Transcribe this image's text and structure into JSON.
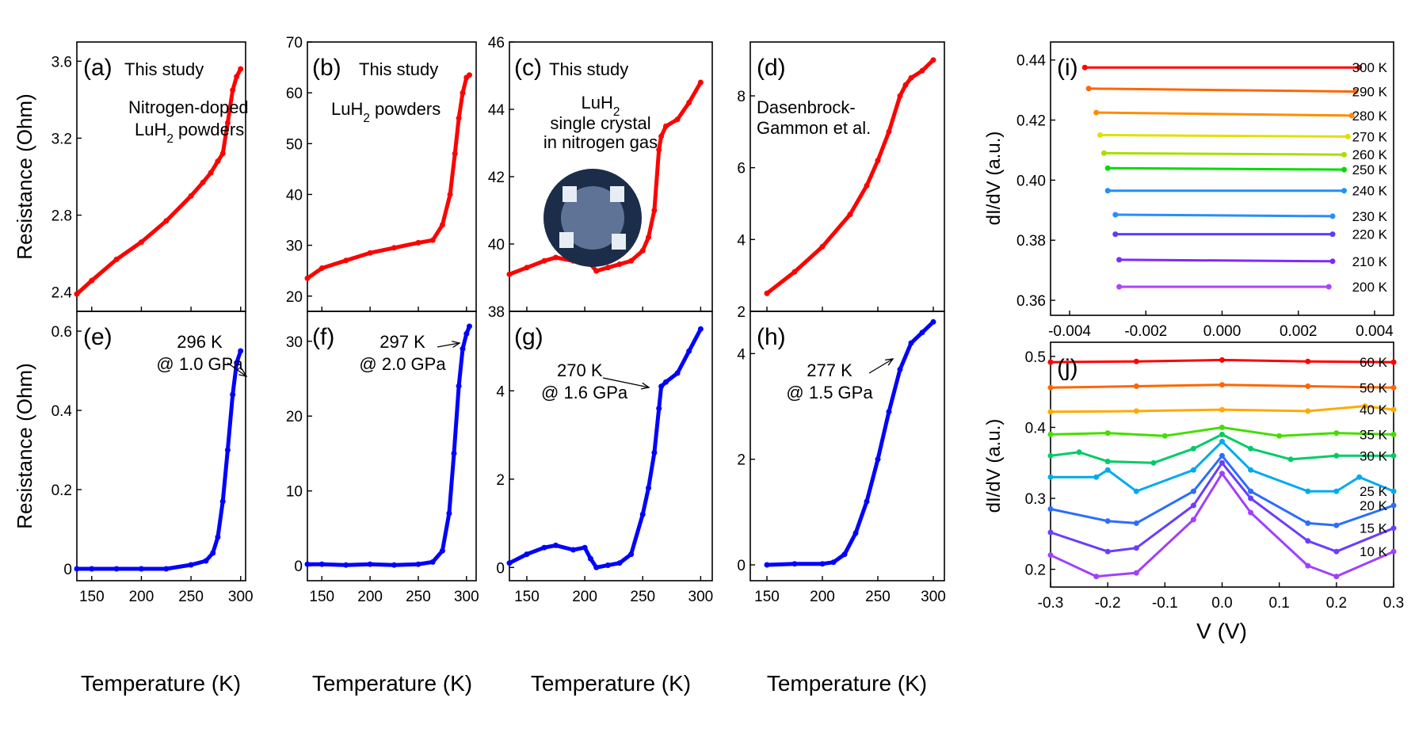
{
  "figure": {
    "ylabel_resistance": "Resistance (Ohm)",
    "xlabel_temperature": "Temperature (K)",
    "ylabel_didv": "dI/dV (a.u.)",
    "xlabel_voltage": "V (V)"
  },
  "chart_data": [
    {
      "id": "a",
      "type": "line",
      "panel_label": "(a)",
      "annotation_lines": [
        "This study",
        "Nitrogen-doped",
        "LuH2 powders"
      ],
      "xlim": [
        135,
        305
      ],
      "ylim": [
        2.3,
        3.7
      ],
      "xticks": [
        150,
        200,
        250,
        300
      ],
      "yticks": [
        2.4,
        2.8,
        3.2,
        3.6
      ],
      "series": [
        {
          "color": "#ff0000",
          "x": [
            135,
            150,
            175,
            200,
            225,
            250,
            262,
            270,
            277,
            282,
            287,
            292,
            296,
            300
          ],
          "y": [
            2.39,
            2.46,
            2.57,
            2.66,
            2.77,
            2.9,
            2.97,
            3.02,
            3.08,
            3.12,
            3.28,
            3.45,
            3.52,
            3.56
          ]
        }
      ]
    },
    {
      "id": "b",
      "type": "line",
      "panel_label": "(b)",
      "annotation_lines": [
        "This study",
        "LuH2 powders"
      ],
      "xlim": [
        135,
        310
      ],
      "ylim": [
        17,
        70
      ],
      "xticks": [
        150,
        200,
        250,
        300
      ],
      "yticks": [
        20,
        30,
        40,
        50,
        60,
        70
      ],
      "series": [
        {
          "color": "#ff0000",
          "x": [
            135,
            150,
            175,
            200,
            225,
            250,
            265,
            275,
            283,
            288,
            292,
            296,
            300,
            303
          ],
          "y": [
            23.5,
            25.5,
            27,
            28.5,
            29.5,
            30.5,
            31,
            34,
            40,
            48,
            55,
            60,
            63,
            63.5
          ]
        }
      ]
    },
    {
      "id": "c",
      "type": "line",
      "panel_label": "(c)",
      "annotation_lines": [
        "This study",
        "LuH2",
        "single crystal",
        "in nitrogen gas"
      ],
      "xlim": [
        135,
        310
      ],
      "ylim": [
        38,
        46
      ],
      "xticks": [
        150,
        200,
        250,
        300
      ],
      "yticks": [
        38,
        40,
        42,
        44,
        46
      ],
      "series": [
        {
          "color": "#ff0000",
          "x": [
            135,
            150,
            165,
            175,
            190,
            200,
            205,
            210,
            220,
            230,
            240,
            250,
            255,
            260,
            264,
            266,
            270,
            280,
            290,
            300
          ],
          "y": [
            39.1,
            39.3,
            39.5,
            39.6,
            39.5,
            39.6,
            39.4,
            39.2,
            39.3,
            39.4,
            39.5,
            39.8,
            40.2,
            41,
            42.8,
            43.2,
            43.5,
            43.7,
            44.2,
            44.8
          ]
        }
      ]
    },
    {
      "id": "d",
      "type": "line",
      "panel_label": "(d)",
      "annotation_lines": [
        "Dasenbrock-",
        "Gammon et al."
      ],
      "xlim": [
        135,
        310
      ],
      "ylim": [
        2,
        9.5
      ],
      "xticks": [
        150,
        200,
        250,
        300
      ],
      "yticks": [
        2,
        4,
        6,
        8
      ],
      "series": [
        {
          "color": "#ff0000",
          "x": [
            150,
            175,
            200,
            225,
            240,
            250,
            260,
            270,
            275,
            280,
            290,
            300
          ],
          "y": [
            2.5,
            3.1,
            3.8,
            4.7,
            5.5,
            6.2,
            7,
            8,
            8.3,
            8.5,
            8.7,
            9
          ]
        }
      ]
    },
    {
      "id": "e",
      "type": "line",
      "panel_label": "(e)",
      "annotation_lines": [
        "296 K",
        "@ 1.0 GPa"
      ],
      "xlim": [
        135,
        305
      ],
      "ylim": [
        -0.03,
        0.65
      ],
      "xticks": [
        150,
        200,
        250,
        300
      ],
      "yticks": [
        0.0,
        0.2,
        0.4,
        0.6
      ],
      "series": [
        {
          "color": "#0000ff",
          "x": [
            135,
            150,
            175,
            200,
            225,
            250,
            265,
            272,
            277,
            282,
            287,
            292,
            296,
            300
          ],
          "y": [
            0.0,
            0.0,
            0.0,
            0.0,
            0.0,
            0.01,
            0.02,
            0.04,
            0.08,
            0.17,
            0.3,
            0.44,
            0.52,
            0.55
          ]
        }
      ]
    },
    {
      "id": "f",
      "type": "line",
      "panel_label": "(f)",
      "annotation_lines": [
        "297 K",
        "@ 2.0 GPa"
      ],
      "xlim": [
        135,
        310
      ],
      "ylim": [
        -2,
        34
      ],
      "xticks": [
        150,
        200,
        250,
        300
      ],
      "yticks": [
        0,
        10,
        20,
        30
      ],
      "series": [
        {
          "color": "#0000ff",
          "x": [
            135,
            150,
            175,
            200,
            225,
            250,
            265,
            275,
            282,
            287,
            292,
            296,
            300,
            303
          ],
          "y": [
            0.2,
            0.2,
            0.1,
            0.2,
            0.1,
            0.2,
            0.5,
            2,
            7,
            15,
            24,
            29,
            31,
            32
          ]
        }
      ]
    },
    {
      "id": "g",
      "type": "line",
      "panel_label": "(g)",
      "annotation_lines": [
        "270 K",
        "@ 1.6 GPa"
      ],
      "xlim": [
        135,
        310
      ],
      "ylim": [
        -0.3,
        5.8
      ],
      "xticks": [
        150,
        200,
        250,
        300
      ],
      "yticks": [
        0,
        2,
        4
      ],
      "series": [
        {
          "color": "#0000ff",
          "x": [
            135,
            150,
            165,
            175,
            190,
            200,
            205,
            210,
            220,
            230,
            240,
            250,
            255,
            260,
            264,
            266,
            270,
            280,
            290,
            300
          ],
          "y": [
            0.1,
            0.3,
            0.45,
            0.5,
            0.4,
            0.45,
            0.2,
            0.0,
            0.05,
            0.1,
            0.3,
            1.2,
            1.8,
            2.6,
            3.6,
            4.1,
            4.2,
            4.4,
            4.9,
            5.4
          ]
        }
      ]
    },
    {
      "id": "h",
      "type": "line",
      "panel_label": "(h)",
      "annotation_lines": [
        "277 K",
        "@ 1.5 GPa"
      ],
      "xlim": [
        135,
        310
      ],
      "ylim": [
        -0.3,
        4.8
      ],
      "xticks": [
        150,
        200,
        250,
        300
      ],
      "yticks": [
        0,
        2,
        4
      ],
      "series": [
        {
          "color": "#0000ff",
          "x": [
            150,
            175,
            200,
            210,
            220,
            230,
            240,
            250,
            260,
            270,
            280,
            290,
            300
          ],
          "y": [
            0.0,
            0.02,
            0.02,
            0.05,
            0.2,
            0.6,
            1.2,
            2.0,
            2.9,
            3.7,
            4.2,
            4.4,
            4.6
          ]
        }
      ]
    },
    {
      "id": "i",
      "type": "line",
      "panel_label": "(i)",
      "xlim": [
        -0.0045,
        0.0045
      ],
      "ylim": [
        0.355,
        0.446
      ],
      "xticks": [
        -0.004,
        -0.002,
        0.0,
        0.002,
        0.004
      ],
      "ytick_labels": [
        "0.36",
        "0.38",
        "0.40",
        "0.42",
        "0.44"
      ],
      "yticks": [
        0.36,
        0.38,
        0.4,
        0.42,
        0.44
      ],
      "xtick_labels": [
        "-0.004",
        "-0.002",
        "0.000",
        "0.002",
        "0.004"
      ],
      "series": [
        {
          "name": "300 K",
          "color": "#ff0000",
          "x": [
            -0.0036,
            0.0036
          ],
          "y": [
            0.4375,
            0.4375
          ]
        },
        {
          "name": "290 K",
          "color": "#ff6600",
          "x": [
            -0.0035,
            0.0035
          ],
          "y": [
            0.4305,
            0.4295
          ]
        },
        {
          "name": "280 K",
          "color": "#ff8c00",
          "x": [
            -0.0033,
            0.0034
          ],
          "y": [
            0.4225,
            0.4215
          ]
        },
        {
          "name": "270 K",
          "color": "#e0e000",
          "x": [
            -0.0032,
            0.0033
          ],
          "y": [
            0.415,
            0.4145
          ]
        },
        {
          "name": "260 K",
          "color": "#aadd00",
          "x": [
            -0.0031,
            0.0032
          ],
          "y": [
            0.409,
            0.4085
          ]
        },
        {
          "name": "250 K",
          "color": "#00dd00",
          "x": [
            -0.003,
            0.0032
          ],
          "y": [
            0.404,
            0.4035
          ]
        },
        {
          "name": "240 K",
          "color": "#1e90ff",
          "x": [
            -0.003,
            0.0032
          ],
          "y": [
            0.3965,
            0.3965
          ]
        },
        {
          "name": "230 K",
          "color": "#2a8cff",
          "x": [
            -0.0028,
            0.0029
          ],
          "y": [
            0.3885,
            0.388
          ]
        },
        {
          "name": "220 K",
          "color": "#5a3dff",
          "x": [
            -0.0028,
            0.0029
          ],
          "y": [
            0.382,
            0.382
          ]
        },
        {
          "name": "210 K",
          "color": "#7b2cff",
          "x": [
            -0.0027,
            0.0029
          ],
          "y": [
            0.3735,
            0.373
          ]
        },
        {
          "name": "200 K",
          "color": "#b040ff",
          "x": [
            -0.0027,
            0.0028
          ],
          "y": [
            0.3645,
            0.3645
          ]
        }
      ]
    },
    {
      "id": "j",
      "type": "line",
      "panel_label": "(j)",
      "xlim": [
        -0.3,
        0.3
      ],
      "ylim": [
        0.175,
        0.52
      ],
      "xticks": [
        -0.3,
        -0.2,
        -0.1,
        0.0,
        0.1,
        0.2,
        0.3
      ],
      "xtick_labels": [
        "-0.3",
        "-0.2",
        "-0.1",
        "0.0",
        "0.1",
        "0.2",
        "0.3"
      ],
      "yticks": [
        0.2,
        0.3,
        0.4,
        0.5
      ],
      "ytick_labels": [
        "0.2",
        "0.3",
        "0.4",
        "0.5"
      ],
      "series": [
        {
          "name": "60 K",
          "color": "#ff0000",
          "x": [
            -0.3,
            -0.15,
            0,
            0.15,
            0.3
          ],
          "y": [
            0.492,
            0.493,
            0.495,
            0.493,
            0.492
          ]
        },
        {
          "name": "50 K",
          "color": "#ff6600",
          "x": [
            -0.3,
            -0.15,
            0,
            0.15,
            0.3
          ],
          "y": [
            0.456,
            0.458,
            0.46,
            0.458,
            0.456
          ]
        },
        {
          "name": "40 K",
          "color": "#ffaa00",
          "x": [
            -0.3,
            -0.15,
            0,
            0.15,
            0.25,
            0.3
          ],
          "y": [
            0.422,
            0.423,
            0.425,
            0.423,
            0.43,
            0.425
          ]
        },
        {
          "name": "35 K",
          "color": "#44dd00",
          "x": [
            -0.3,
            -0.2,
            -0.1,
            0,
            0.1,
            0.2,
            0.3
          ],
          "y": [
            0.39,
            0.392,
            0.388,
            0.4,
            0.388,
            0.392,
            0.39
          ]
        },
        {
          "name": "30 K",
          "color": "#00cc66",
          "x": [
            -0.3,
            -0.25,
            -0.2,
            -0.12,
            -0.05,
            0,
            0.05,
            0.12,
            0.2,
            0.3
          ],
          "y": [
            0.36,
            0.365,
            0.352,
            0.35,
            0.37,
            0.39,
            0.37,
            0.355,
            0.36,
            0.36
          ]
        },
        {
          "name": "25 K",
          "color": "#00aaee",
          "x": [
            -0.3,
            -0.22,
            -0.2,
            -0.15,
            -0.05,
            0,
            0.05,
            0.15,
            0.2,
            0.24,
            0.3
          ],
          "y": [
            0.33,
            0.33,
            0.34,
            0.31,
            0.34,
            0.38,
            0.34,
            0.31,
            0.31,
            0.33,
            0.31
          ]
        },
        {
          "name": "20 K",
          "color": "#2a6dff",
          "x": [
            -0.3,
            -0.2,
            -0.15,
            -0.05,
            0,
            0.05,
            0.15,
            0.2,
            0.3
          ],
          "y": [
            0.285,
            0.268,
            0.265,
            0.31,
            0.36,
            0.31,
            0.265,
            0.262,
            0.29
          ]
        },
        {
          "name": "15 K",
          "color": "#6a3dff",
          "x": [
            -0.3,
            -0.2,
            -0.15,
            -0.05,
            0,
            0.05,
            0.15,
            0.2,
            0.3
          ],
          "y": [
            0.252,
            0.225,
            0.23,
            0.29,
            0.35,
            0.3,
            0.24,
            0.225,
            0.258
          ]
        },
        {
          "name": "10 K",
          "color": "#a040ff",
          "x": [
            -0.3,
            -0.22,
            -0.15,
            -0.05,
            0,
            0.05,
            0.15,
            0.2,
            0.3
          ],
          "y": [
            0.22,
            0.19,
            0.195,
            0.27,
            0.335,
            0.28,
            0.205,
            0.19,
            0.225
          ]
        }
      ]
    }
  ]
}
